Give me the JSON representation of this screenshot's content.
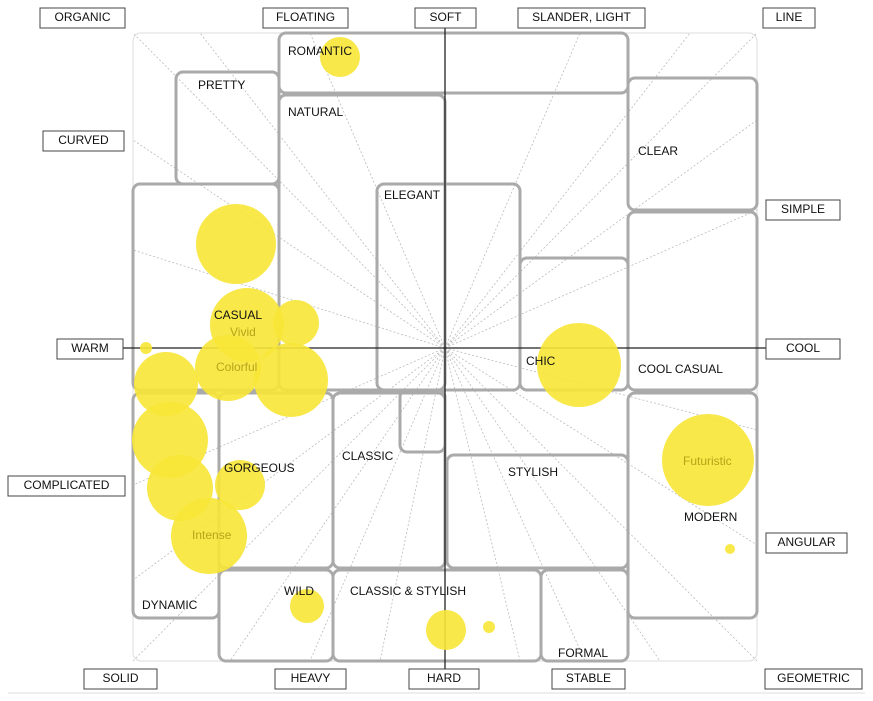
{
  "axis_labels": [
    "ORGANIC",
    "FLOATING",
    "SOFT",
    "SLANDER, LIGHT",
    "LINE",
    "CURVED",
    "SIMPLE",
    "WARM",
    "COOL",
    "COMPLICATED",
    "ANGULAR",
    "SOLID",
    "HEAVY",
    "HARD",
    "STABLE",
    "GEOMETRIC"
  ],
  "regions": [
    "ROMANTIC",
    "PRETTY",
    "NATURAL",
    "ELEGANT",
    "CLEAR",
    "CASUAL",
    "CHIC",
    "COOL CASUAL",
    "GORGEOUS",
    "CLASSIC",
    "STYLISH",
    "MODERN",
    "DYNAMIC",
    "WILD",
    "CLASSIC & STYLISH",
    "FORMAL"
  ],
  "color_words": [
    "Vivid",
    "Colorful",
    "Intense",
    "Futuristic"
  ]
}
